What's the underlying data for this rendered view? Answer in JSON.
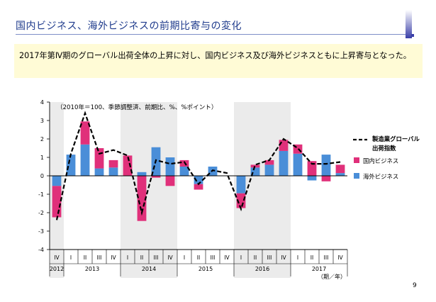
{
  "slide": {
    "title": "国内ビジネス、海外ビジネスの前期比寄与の変化",
    "summary": "2017年第Ⅳ期のグローバル出荷全体の上昇に対し、国内ビジネス及び海外ビジネスともに上昇寄与となった。",
    "page_number": "9"
  },
  "colors": {
    "domestic": "#e0307a",
    "overseas": "#4a8ed8",
    "line": "#000000",
    "shade": "#ebebeb"
  },
  "chart_data": {
    "type": "bar",
    "title": "",
    "note": "（2010年＝100、季節調整済、前期比、%、%ポイント）",
    "xlabel": "（期／年）",
    "ylabel": "",
    "ylim": [
      -4,
      4
    ],
    "y_ticks": [
      -4,
      -3,
      -2,
      -1,
      0,
      1,
      2,
      3,
      4
    ],
    "stacked": true,
    "categories": [
      "IV",
      "I",
      "II",
      "III",
      "IV",
      "I",
      "II",
      "III",
      "IV",
      "I",
      "II",
      "III",
      "IV",
      "I",
      "II",
      "III",
      "IV",
      "I",
      "II",
      "III",
      "IV"
    ],
    "years": [
      {
        "label": "2012",
        "start": 0,
        "end": 0
      },
      {
        "label": "2013",
        "start": 1,
        "end": 4
      },
      {
        "label": "2014",
        "start": 5,
        "end": 8
      },
      {
        "label": "2015",
        "start": 9,
        "end": 12
      },
      {
        "label": "2016",
        "start": 13,
        "end": 16
      },
      {
        "label": "2017",
        "start": 17,
        "end": 20
      }
    ],
    "shaded_years": [
      "2012",
      "2014",
      "2016"
    ],
    "series": [
      {
        "name": "国内ビジネス",
        "type": "bar",
        "values": [
          -1.7,
          0.0,
          1.25,
          1.1,
          0.4,
          1.1,
          -2.45,
          -0.1,
          -0.55,
          0.35,
          -0.3,
          0.0,
          0.0,
          -0.8,
          0.15,
          0.25,
          0.6,
          0.5,
          0.8,
          -0.3,
          0.45
        ]
      },
      {
        "name": "海外ビジネス",
        "type": "bar",
        "values": [
          -0.55,
          1.15,
          1.7,
          0.4,
          0.45,
          0.0,
          0.2,
          1.55,
          1.0,
          0.5,
          -0.45,
          0.5,
          0.0,
          -0.95,
          0.45,
          0.6,
          1.35,
          1.2,
          -0.25,
          1.15,
          0.15
        ]
      },
      {
        "name": "製造業グローバル出荷指数",
        "type": "line",
        "values": [
          -2.4,
          1.2,
          3.4,
          1.2,
          1.4,
          1.1,
          -2.0,
          0.85,
          0.65,
          0.75,
          -0.45,
          0.3,
          0.15,
          -1.8,
          0.6,
          0.85,
          2.0,
          1.5,
          0.65,
          0.65,
          0.75
        ]
      }
    ],
    "legend": {
      "line_label_lines": [
        "製造業グローバル",
        "出荷指数"
      ],
      "domestic_label": "国内ビジネス",
      "overseas_label": "海外ビジネス",
      "position": "right"
    }
  }
}
